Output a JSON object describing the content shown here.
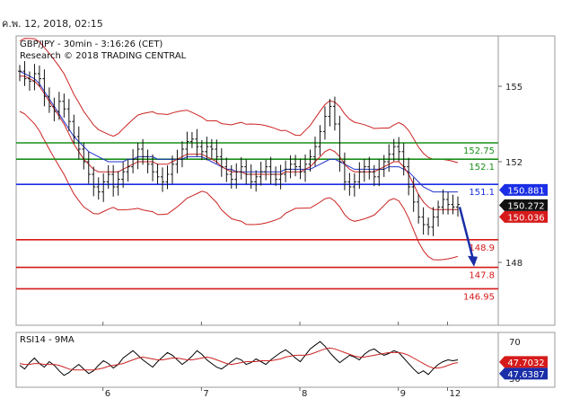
{
  "header": {
    "date_text": "ค.พ. 12, 2018, 02:15"
  },
  "chart_data": [
    {
      "type": "line",
      "title": "GBP/JPY - 30min - 3:16:26 (CET)",
      "subtitle": "Research © 2018 TRADING CENTRAL",
      "x_ticks": [
        "6",
        "7",
        "8",
        "9",
        "12"
      ],
      "ylim": [
        145.5,
        157.0
      ],
      "y_ticks": [
        148,
        152,
        155
      ],
      "grid": false,
      "price_series": [
        155.6,
        155.3,
        155.2,
        155.5,
        155.3,
        154.6,
        154.2,
        154.0,
        154.4,
        154.1,
        153.6,
        153.0,
        152.5,
        152.0,
        151.5,
        151.0,
        150.8,
        151.2,
        151.5,
        151.0,
        151.3,
        151.6,
        151.8,
        152.1,
        152.5,
        152.2,
        151.9,
        151.6,
        151.4,
        151.2,
        151.5,
        151.9,
        152.1,
        152.5,
        152.8,
        152.9,
        152.6,
        152.4,
        152.6,
        152.5,
        152.2,
        151.8,
        151.5,
        151.3,
        151.6,
        151.8,
        151.5,
        151.2,
        151.4,
        151.6,
        151.8,
        151.5,
        151.3,
        151.5,
        151.7,
        151.9,
        151.8,
        151.6,
        151.9,
        152.2,
        152.6,
        153.2,
        153.8,
        154.2,
        153.5,
        152.0,
        151.2,
        151.0,
        151.2,
        151.6,
        151.8,
        151.6,
        151.4,
        151.7,
        152.0,
        152.3,
        152.6,
        152.4,
        151.8,
        151.0,
        150.4,
        149.8,
        149.5,
        149.4,
        149.8,
        150.2,
        150.5,
        150.3,
        150.2,
        150.3
      ],
      "moving_averages": [
        {
          "color": "#2233cc",
          "values": [
            155.6,
            155.5,
            155.4,
            155.3,
            155.1,
            154.8,
            154.5,
            154.2,
            153.9,
            153.6,
            153.3,
            153.0,
            152.8,
            152.6,
            152.4,
            152.3,
            152.2,
            152.1,
            152.0,
            152.0,
            152.0,
            152.0,
            152.1,
            152.1,
            152.2,
            152.2,
            152.2,
            152.2,
            152.1,
            152.1,
            152.1,
            152.1,
            152.1,
            152.1,
            152.2,
            152.2,
            152.2,
            152.2,
            152.1,
            152.0,
            151.9,
            151.8,
            151.7,
            151.7,
            151.6,
            151.6,
            151.6,
            151.6,
            151.6,
            151.6,
            151.6,
            151.6,
            151.6,
            151.6,
            151.7,
            151.7,
            151.7,
            151.7,
            151.7,
            151.7,
            151.8,
            151.9,
            152.0,
            152.1,
            152.1,
            152.0,
            151.9,
            151.8,
            151.7,
            151.7,
            151.7,
            151.7,
            151.7,
            151.7,
            151.7,
            151.8,
            151.8,
            151.8,
            151.7,
            151.6,
            151.4,
            151.2,
            151.0,
            150.9,
            150.8,
            150.8,
            150.8,
            150.8,
            150.8,
            150.8
          ]
        },
        {
          "color": "#cc2222",
          "values": [
            155.4,
            155.4,
            155.3,
            155.2,
            155.0,
            154.7,
            154.4,
            154.1,
            153.8,
            153.5,
            153.1,
            152.7,
            152.4,
            152.1,
            151.9,
            151.7,
            151.6,
            151.6,
            151.6,
            151.6,
            151.6,
            151.7,
            151.8,
            151.9,
            152.0,
            152.0,
            152.0,
            152.0,
            151.9,
            151.9,
            151.9,
            152.0,
            152.1,
            152.2,
            152.3,
            152.3,
            152.3,
            152.3,
            152.2,
            152.1,
            152.0,
            151.8,
            151.7,
            151.6,
            151.6,
            151.6,
            151.5,
            151.5,
            151.5,
            151.5,
            151.5,
            151.5,
            151.5,
            151.5,
            151.6,
            151.6,
            151.6,
            151.6,
            151.7,
            151.8,
            152.0,
            152.2,
            152.4,
            152.5,
            152.4,
            152.2,
            151.9,
            151.7,
            151.6,
            151.6,
            151.6,
            151.6,
            151.6,
            151.7,
            151.8,
            151.9,
            152.0,
            152.0,
            151.8,
            151.5,
            151.1,
            150.7,
            150.4,
            150.2,
            150.1,
            150.1,
            150.1,
            150.1,
            150.1,
            150.1
          ]
        }
      ],
      "bollinger_color": "#cc2222",
      "levels": [
        {
          "value": 152.75,
          "label": "152.75",
          "color": "#1a8f1a"
        },
        {
          "value": 152.1,
          "label": "152.1",
          "color": "#1a8f1a"
        },
        {
          "value": 151.1,
          "label": "151.1",
          "color": "#1a2ee6"
        },
        {
          "value": 148.9,
          "label": "148.9",
          "color": "#d61a1a"
        },
        {
          "value": 147.8,
          "label": "147.8",
          "color": "#d61a1a"
        },
        {
          "value": 146.95,
          "label": "146.95",
          "color": "#d61a1a"
        }
      ],
      "price_tags": [
        {
          "value": 150.881,
          "label": "150.881",
          "bg": "#1a2ee6",
          "fg": "#ffffff"
        },
        {
          "value": 150.272,
          "label": "150.272",
          "bg": "#111111",
          "fg": "#ffffff"
        },
        {
          "value": 150.036,
          "label": "150.036",
          "bg": "#d61a1a",
          "fg": "#ffffff"
        }
      ],
      "forecast_arrow": {
        "from": 150.2,
        "to": 147.9,
        "color": "#1a2ea8"
      }
    },
    {
      "type": "line",
      "title": "RSI14 - 9MA",
      "ylim": [
        20,
        80
      ],
      "y_ticks": [
        30,
        70
      ],
      "series": [
        {
          "color": "#000000",
          "values": [
            44,
            40,
            47,
            52,
            46,
            42,
            48,
            44,
            38,
            33,
            36,
            41,
            45,
            40,
            35,
            38,
            44,
            49,
            46,
            41,
            45,
            52,
            56,
            60,
            55,
            50,
            46,
            42,
            48,
            53,
            58,
            55,
            50,
            45,
            49,
            54,
            60,
            56,
            50,
            46,
            42,
            40,
            44,
            48,
            52,
            50,
            45,
            47,
            51,
            48,
            45,
            50,
            54,
            58,
            61,
            57,
            52,
            48,
            55,
            62,
            66,
            70,
            65,
            58,
            52,
            47,
            51,
            55,
            53,
            50,
            56,
            60,
            62,
            58,
            55,
            57,
            60,
            58,
            52,
            46,
            40,
            35,
            38,
            34,
            40,
            45,
            48,
            50,
            49,
            50
          ]
        },
        {
          "color": "#cc2222",
          "values": [
            46,
            45,
            45,
            46,
            46,
            45,
            45,
            45,
            44,
            42,
            40,
            39,
            39,
            39,
            39,
            39,
            40,
            41,
            43,
            44,
            45,
            46,
            48,
            50,
            52,
            53,
            52,
            51,
            50,
            50,
            51,
            52,
            52,
            51,
            50,
            50,
            51,
            52,
            53,
            52,
            50,
            48,
            46,
            45,
            46,
            47,
            48,
            48,
            48,
            49,
            49,
            49,
            50,
            51,
            53,
            54,
            55,
            55,
            55,
            56,
            58,
            60,
            62,
            63,
            62,
            60,
            58,
            56,
            54,
            53,
            53,
            54,
            55,
            56,
            57,
            58,
            58,
            58,
            57,
            55,
            52,
            49,
            46,
            43,
            41,
            41,
            42,
            44,
            46,
            47
          ]
        }
      ],
      "tags": [
        {
          "value": 47.7032,
          "label": "47.7032",
          "bg": "#d61a1a",
          "fg": "#ffffff"
        },
        {
          "value": 47.6387,
          "label": "47.6387",
          "bg": "#1a2ea8",
          "fg": "#ffffff"
        }
      ]
    }
  ]
}
